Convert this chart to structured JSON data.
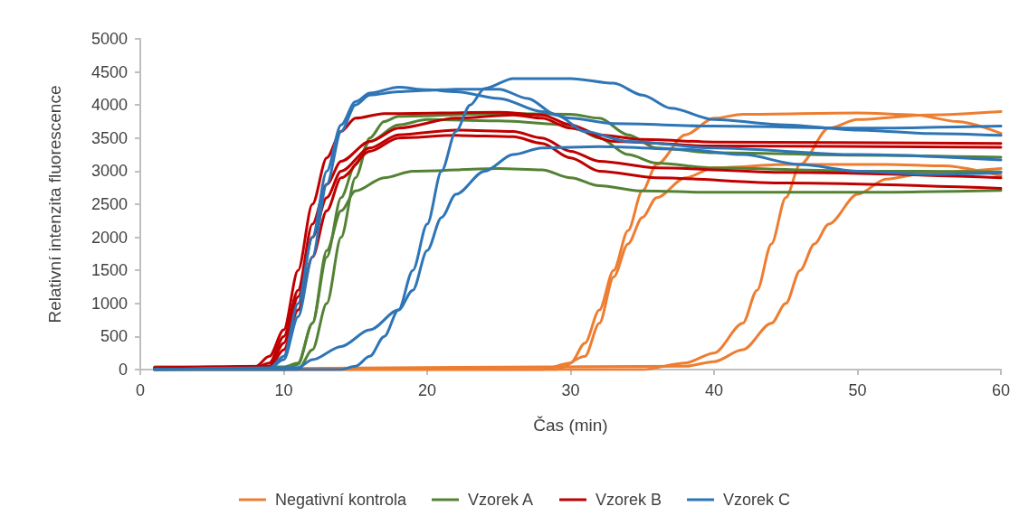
{
  "chart_data": {
    "type": "line",
    "xlabel": "Čas (min)",
    "ylabel": "Relativní intenzita fluorescence",
    "xlim": [
      0,
      60
    ],
    "xticks": [
      0,
      10,
      20,
      30,
      40,
      50,
      60
    ],
    "ylim": [
      0,
      5000
    ],
    "yticks": [
      0,
      500,
      1000,
      1500,
      2000,
      2500,
      3000,
      3500,
      4000,
      4500,
      5000
    ],
    "grid": false,
    "legend": "bottom",
    "marker": "none",
    "line_style": "solid",
    "series": [
      {
        "name": "Negativní kontrola",
        "color": "#ed7d31",
        "x": [
          1,
          28,
          30,
          31,
          32,
          33,
          34,
          35,
          36,
          38,
          40,
          42,
          50,
          54,
          57,
          60
        ],
        "values": [
          0,
          0,
          100,
          400,
          900,
          1500,
          2100,
          2700,
          3100,
          3550,
          3800,
          3860,
          3880,
          3850,
          3750,
          3570
        ]
      },
      {
        "color": "#ed7d31",
        "x": [
          1,
          29,
          31,
          32,
          33,
          34,
          35,
          36,
          38,
          40,
          45,
          52,
          56,
          60
        ],
        "values": [
          0,
          0,
          200,
          700,
          1400,
          1900,
          2300,
          2600,
          2900,
          3050,
          3100,
          3100,
          3080,
          2930
        ]
      },
      {
        "color": "#ed7d31",
        "x": [
          1,
          35,
          38,
          40,
          42,
          43,
          44,
          45,
          46,
          48,
          50,
          55,
          60
        ],
        "values": [
          0,
          0,
          100,
          250,
          700,
          1200,
          1900,
          2600,
          3100,
          3650,
          3780,
          3850,
          3900
        ]
      },
      {
        "color": "#ed7d31",
        "x": [
          1,
          38,
          40,
          42,
          44,
          45,
          46,
          47,
          48,
          50,
          52,
          55,
          60
        ],
        "values": [
          0,
          50,
          120,
          300,
          700,
          1000,
          1500,
          1900,
          2200,
          2650,
          2880,
          2980,
          3040
        ]
      },
      {
        "name": "Vzorek A",
        "color": "#548235",
        "x": [
          1,
          11,
          12,
          13,
          14,
          15,
          16,
          17,
          18,
          25,
          30,
          32,
          34,
          36,
          40,
          50,
          60
        ],
        "values": [
          0,
          0,
          300,
          1000,
          2000,
          2900,
          3500,
          3750,
          3830,
          3870,
          3860,
          3800,
          3550,
          3350,
          3280,
          3240,
          3210
        ]
      },
      {
        "color": "#548235",
        "x": [
          1,
          10,
          11,
          12,
          13,
          14,
          15,
          16,
          18,
          20,
          25,
          30,
          32,
          34,
          36,
          40,
          50,
          60
        ],
        "values": [
          40,
          40,
          100,
          700,
          1700,
          2600,
          3100,
          3450,
          3700,
          3780,
          3760,
          3700,
          3500,
          3250,
          3120,
          3050,
          3000,
          2990
        ]
      },
      {
        "color": "#548235",
        "x": [
          1,
          10,
          11,
          12,
          13,
          14,
          15,
          17,
          19,
          25,
          28,
          30,
          32,
          35,
          40,
          50,
          60
        ],
        "values": [
          0,
          0,
          80,
          700,
          1800,
          2400,
          2700,
          2900,
          3000,
          3040,
          3020,
          2900,
          2780,
          2700,
          2680,
          2680,
          2710
        ]
      },
      {
        "name": "Vzorek B",
        "color": "#c00000",
        "x": [
          1,
          8,
          9,
          10,
          11,
          12,
          13,
          14,
          15,
          17,
          25,
          28,
          30,
          32,
          35,
          40,
          60
        ],
        "values": [
          30,
          40,
          200,
          600,
          1500,
          2500,
          3200,
          3600,
          3800,
          3870,
          3890,
          3850,
          3700,
          3550,
          3480,
          3440,
          3420
        ]
      },
      {
        "color": "#c00000",
        "x": [
          1,
          8,
          9,
          10,
          11,
          12,
          13,
          14,
          16,
          18,
          22,
          26,
          28,
          30,
          33,
          40,
          60
        ],
        "values": [
          20,
          30,
          100,
          500,
          1200,
          2200,
          2800,
          3150,
          3450,
          3650,
          3800,
          3850,
          3800,
          3650,
          3450,
          3380,
          3360
        ]
      },
      {
        "color": "#c00000",
        "x": [
          1,
          9,
          10,
          11,
          12,
          13,
          14,
          16,
          18,
          22,
          26,
          28,
          30,
          32,
          36,
          45,
          60
        ],
        "values": [
          20,
          50,
          400,
          1100,
          2000,
          2600,
          3000,
          3350,
          3550,
          3620,
          3600,
          3500,
          3300,
          3150,
          3050,
          2980,
          2900
        ]
      },
      {
        "color": "#c00000",
        "x": [
          1,
          9,
          10,
          11,
          12,
          13,
          14,
          16,
          18,
          22,
          26,
          28,
          30,
          32,
          36,
          45,
          60
        ],
        "values": [
          20,
          30,
          300,
          900,
          1700,
          2400,
          2900,
          3300,
          3500,
          3540,
          3520,
          3420,
          3200,
          3000,
          2900,
          2820,
          2740
        ]
      },
      {
        "name": "Vzorek C",
        "color": "#2e75b6",
        "x": [
          1,
          9,
          10,
          11,
          12,
          13,
          14,
          15,
          16,
          18,
          20,
          22,
          25,
          28,
          30,
          33,
          40,
          50,
          60
        ],
        "values": [
          0,
          20,
          200,
          1000,
          2000,
          3000,
          3700,
          4050,
          4180,
          4270,
          4230,
          4200,
          4100,
          3900,
          3800,
          3720,
          3680,
          3650,
          3680
        ]
      },
      {
        "color": "#2e75b6",
        "x": [
          1,
          9,
          10,
          11,
          12,
          13,
          14,
          15,
          16,
          18,
          20,
          22,
          25,
          27,
          29,
          31,
          34,
          40,
          50,
          60
        ],
        "values": [
          0,
          20,
          150,
          800,
          1700,
          2800,
          3600,
          4000,
          4150,
          4200,
          4220,
          4240,
          4240,
          4100,
          3850,
          3600,
          3450,
          3350,
          3250,
          3170
        ]
      },
      {
        "color": "#2e75b6",
        "x": [
          1,
          14,
          15,
          16,
          17,
          18,
          19,
          20,
          21,
          22,
          23,
          24,
          26,
          30,
          33,
          35,
          37,
          40,
          45,
          50,
          55,
          60
        ],
        "values": [
          0,
          0,
          50,
          200,
          500,
          900,
          1500,
          2200,
          3000,
          3600,
          4000,
          4250,
          4400,
          4400,
          4330,
          4150,
          3950,
          3780,
          3700,
          3620,
          3570,
          3540
        ]
      },
      {
        "color": "#2e75b6",
        "x": [
          1,
          11,
          12,
          14,
          16,
          18,
          19,
          20,
          21,
          22,
          24,
          26,
          28,
          32,
          38,
          42,
          46,
          50,
          55,
          60
        ],
        "values": [
          0,
          30,
          150,
          350,
          600,
          900,
          1200,
          1800,
          2300,
          2650,
          3000,
          3250,
          3350,
          3370,
          3330,
          3250,
          3100,
          3000,
          2950,
          2975
        ]
      }
    ]
  }
}
